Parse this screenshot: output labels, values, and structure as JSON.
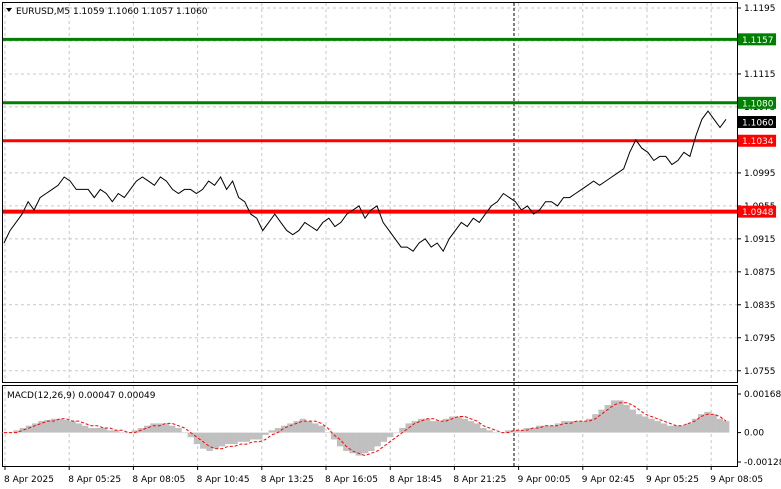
{
  "chart_data": [
    {
      "type": "line",
      "symbol_header": "EURUSD,M5  1.1059 1.1060 1.1057 1.1060",
      "ylim": [
        1.0745,
        1.1195
      ],
      "y_ticks": [
        "1.1195",
        "1.1155",
        "1.1115",
        "1.1075",
        "1.1035",
        "1.0995",
        "1.0955",
        "1.0915",
        "1.0875",
        "1.0835",
        "1.0795",
        "1.0755"
      ],
      "x_ticks": [
        "8 Apr 2025",
        "8 Apr 05:25",
        "8 Apr 08:05",
        "8 Apr 10:45",
        "8 Apr 13:25",
        "8 Apr 16:05",
        "8 Apr 18:45",
        "8 Apr 21:25",
        "9 Apr 00:05",
        "9 Apr 02:45",
        "9 Apr 05:25",
        "9 Apr 08:05"
      ],
      "current_price": "1.1060",
      "levels": [
        {
          "price": 1.1157,
          "label": "1.1157",
          "color": "#008000"
        },
        {
          "price": 1.108,
          "label": "1.1080",
          "color": "#008000"
        },
        {
          "price": 1.1034,
          "label": "1.1034",
          "color": "#ff0000"
        },
        {
          "price": 1.0948,
          "label": "1.0948",
          "color": "#ff0000"
        }
      ],
      "series": [
        {
          "values": [
            1.091,
            1.0925,
            1.0935,
            1.0945,
            1.096,
            1.095,
            1.0965,
            1.097,
            1.0975,
            1.098,
            1.099,
            1.0985,
            1.0975,
            1.0975,
            1.0975,
            1.0965,
            1.0975,
            1.097,
            1.096,
            1.097,
            1.0965,
            1.0975,
            1.0985,
            1.099,
            1.0985,
            1.098,
            1.099,
            1.0985,
            1.0975,
            1.097,
            1.0975,
            1.0975,
            1.097,
            1.0975,
            1.0985,
            1.098,
            1.099,
            1.0975,
            1.0985,
            1.0965,
            1.096,
            1.0945,
            1.094,
            1.0925,
            1.0935,
            1.0945,
            1.0935,
            1.0925,
            1.092,
            1.0925,
            1.0935,
            1.093,
            1.0925,
            1.0935,
            1.094,
            1.093,
            1.0935,
            1.0945,
            1.095,
            1.0955,
            1.094,
            1.095,
            1.0955,
            1.0935,
            1.0925,
            1.0915,
            1.0905,
            1.0905,
            1.09,
            1.091,
            1.0915,
            1.0905,
            1.091,
            1.09,
            1.0915,
            1.0925,
            1.0935,
            1.093,
            1.094,
            1.0935,
            1.0945,
            1.0955,
            1.096,
            1.097,
            1.0965,
            1.096,
            1.095,
            1.0955,
            1.0945,
            1.095,
            1.096,
            1.096,
            1.0955,
            1.0965,
            1.0965,
            1.097,
            1.0975,
            1.098,
            1.0985,
            1.098,
            1.0985,
            1.099,
            1.0995,
            1.1,
            1.102,
            1.1035,
            1.1025,
            1.102,
            1.101,
            1.1015,
            1.1015,
            1.1005,
            1.101,
            1.102,
            1.1015,
            1.104,
            1.106,
            1.107,
            1.106,
            1.105,
            1.106
          ]
        }
      ]
    },
    {
      "type": "bar",
      "indicator_header": "MACD(12,26,9) 0.00047 0.00049",
      "ylim": [
        -0.00128,
        0.00168
      ],
      "y_ticks": [
        "0.00168",
        "0.00",
        "-0.00128"
      ],
      "series": [
        {
          "name": "MACD",
          "values": [
            0.0,
            0.0,
            0.0001,
            0.0002,
            0.0003,
            0.0004,
            0.0005,
            0.00055,
            0.0006,
            0.0006,
            0.00055,
            0.0005,
            0.0004,
            0.0003,
            0.0002,
            0.0002,
            0.0002,
            0.0001,
            0.0001,
            0.0,
            0.0,
            0.0001,
            0.0002,
            0.0003,
            0.0004,
            0.0004,
            0.0004,
            0.0003,
            0.0002,
            0.0,
            -0.0002,
            -0.0005,
            -0.0007,
            -0.0008,
            -0.0007,
            -0.0006,
            -0.0005,
            -0.0005,
            -0.0004,
            -0.0004,
            -0.0003,
            -0.0003,
            -0.0001,
            0.0001,
            0.0002,
            0.0003,
            0.0004,
            0.0005,
            0.0006,
            0.0005,
            0.0004,
            0.0003,
            0.0,
            -0.0003,
            -0.0006,
            -0.0008,
            -0.0009,
            -0.001,
            -0.0009,
            -0.0008,
            -0.0006,
            -0.0004,
            -0.0002,
            0.0,
            0.0002,
            0.0004,
            0.0005,
            0.0006,
            0.0006,
            0.0005,
            0.0005,
            0.0006,
            0.0007,
            0.0007,
            0.0006,
            0.0005,
            0.0004,
            0.0002,
            0.0001,
            0.0,
            0.0,
            0.0001,
            0.0001,
            0.0001,
            0.0002,
            0.0002,
            0.0003,
            0.0003,
            0.0003,
            0.0004,
            0.0005,
            0.0005,
            0.0005,
            0.0005,
            0.0006,
            0.0008,
            0.001,
            0.0012,
            0.0014,
            0.0014,
            0.0012,
            0.001,
            0.0008,
            0.0007,
            0.0006,
            0.0005,
            0.0004,
            0.0003,
            0.0003,
            0.0003,
            0.0004,
            0.0006,
            0.0008,
            0.0009,
            0.0008,
            0.0006,
            0.0005
          ]
        },
        {
          "name": "Signal",
          "values": [
            0.0,
            0.0,
            0.0,
            0.0001,
            0.0002,
            0.0003,
            0.0004,
            0.0005,
            0.0005,
            0.0006,
            0.0006,
            0.0005,
            0.0005,
            0.0004,
            0.0003,
            0.0003,
            0.0002,
            0.0002,
            0.0001,
            0.0001,
            0.0,
            0.0,
            0.0001,
            0.0002,
            0.0003,
            0.0003,
            0.0004,
            0.0004,
            0.0003,
            0.0002,
            0.0,
            -0.0002,
            -0.0004,
            -0.0006,
            -0.0007,
            -0.0007,
            -0.0006,
            -0.0006,
            -0.0005,
            -0.0005,
            -0.0004,
            -0.0004,
            -0.0003,
            -0.0001,
            0.0,
            0.0002,
            0.0003,
            0.0004,
            0.0005,
            0.0005,
            0.0005,
            0.0004,
            0.0002,
            -0.0001,
            -0.0003,
            -0.0006,
            -0.0008,
            -0.0009,
            -0.001,
            -0.0009,
            -0.0008,
            -0.0006,
            -0.0004,
            -0.0002,
            0.0,
            0.0002,
            0.0004,
            0.0005,
            0.0006,
            0.0006,
            0.0005,
            0.0005,
            0.0006,
            0.0007,
            0.0007,
            0.0006,
            0.0005,
            0.0003,
            0.0002,
            0.0001,
            0.0,
            0.0,
            0.0001,
            0.0001,
            0.0001,
            0.0002,
            0.0002,
            0.0003,
            0.0003,
            0.0003,
            0.0004,
            0.0004,
            0.0005,
            0.0005,
            0.0005,
            0.0006,
            0.0008,
            0.001,
            0.0012,
            0.0013,
            0.0013,
            0.0012,
            0.001,
            0.0008,
            0.0007,
            0.0006,
            0.0005,
            0.0004,
            0.0003,
            0.0003,
            0.0004,
            0.0005,
            0.0007,
            0.0008,
            0.0008,
            0.0007,
            0.0005
          ]
        }
      ]
    }
  ],
  "colors": {
    "price_line": "#000000",
    "histogram": "#c0c0c0",
    "signal": "#ff0000",
    "grid": "#c8c8c8",
    "current_tag_bg": "#000000"
  }
}
